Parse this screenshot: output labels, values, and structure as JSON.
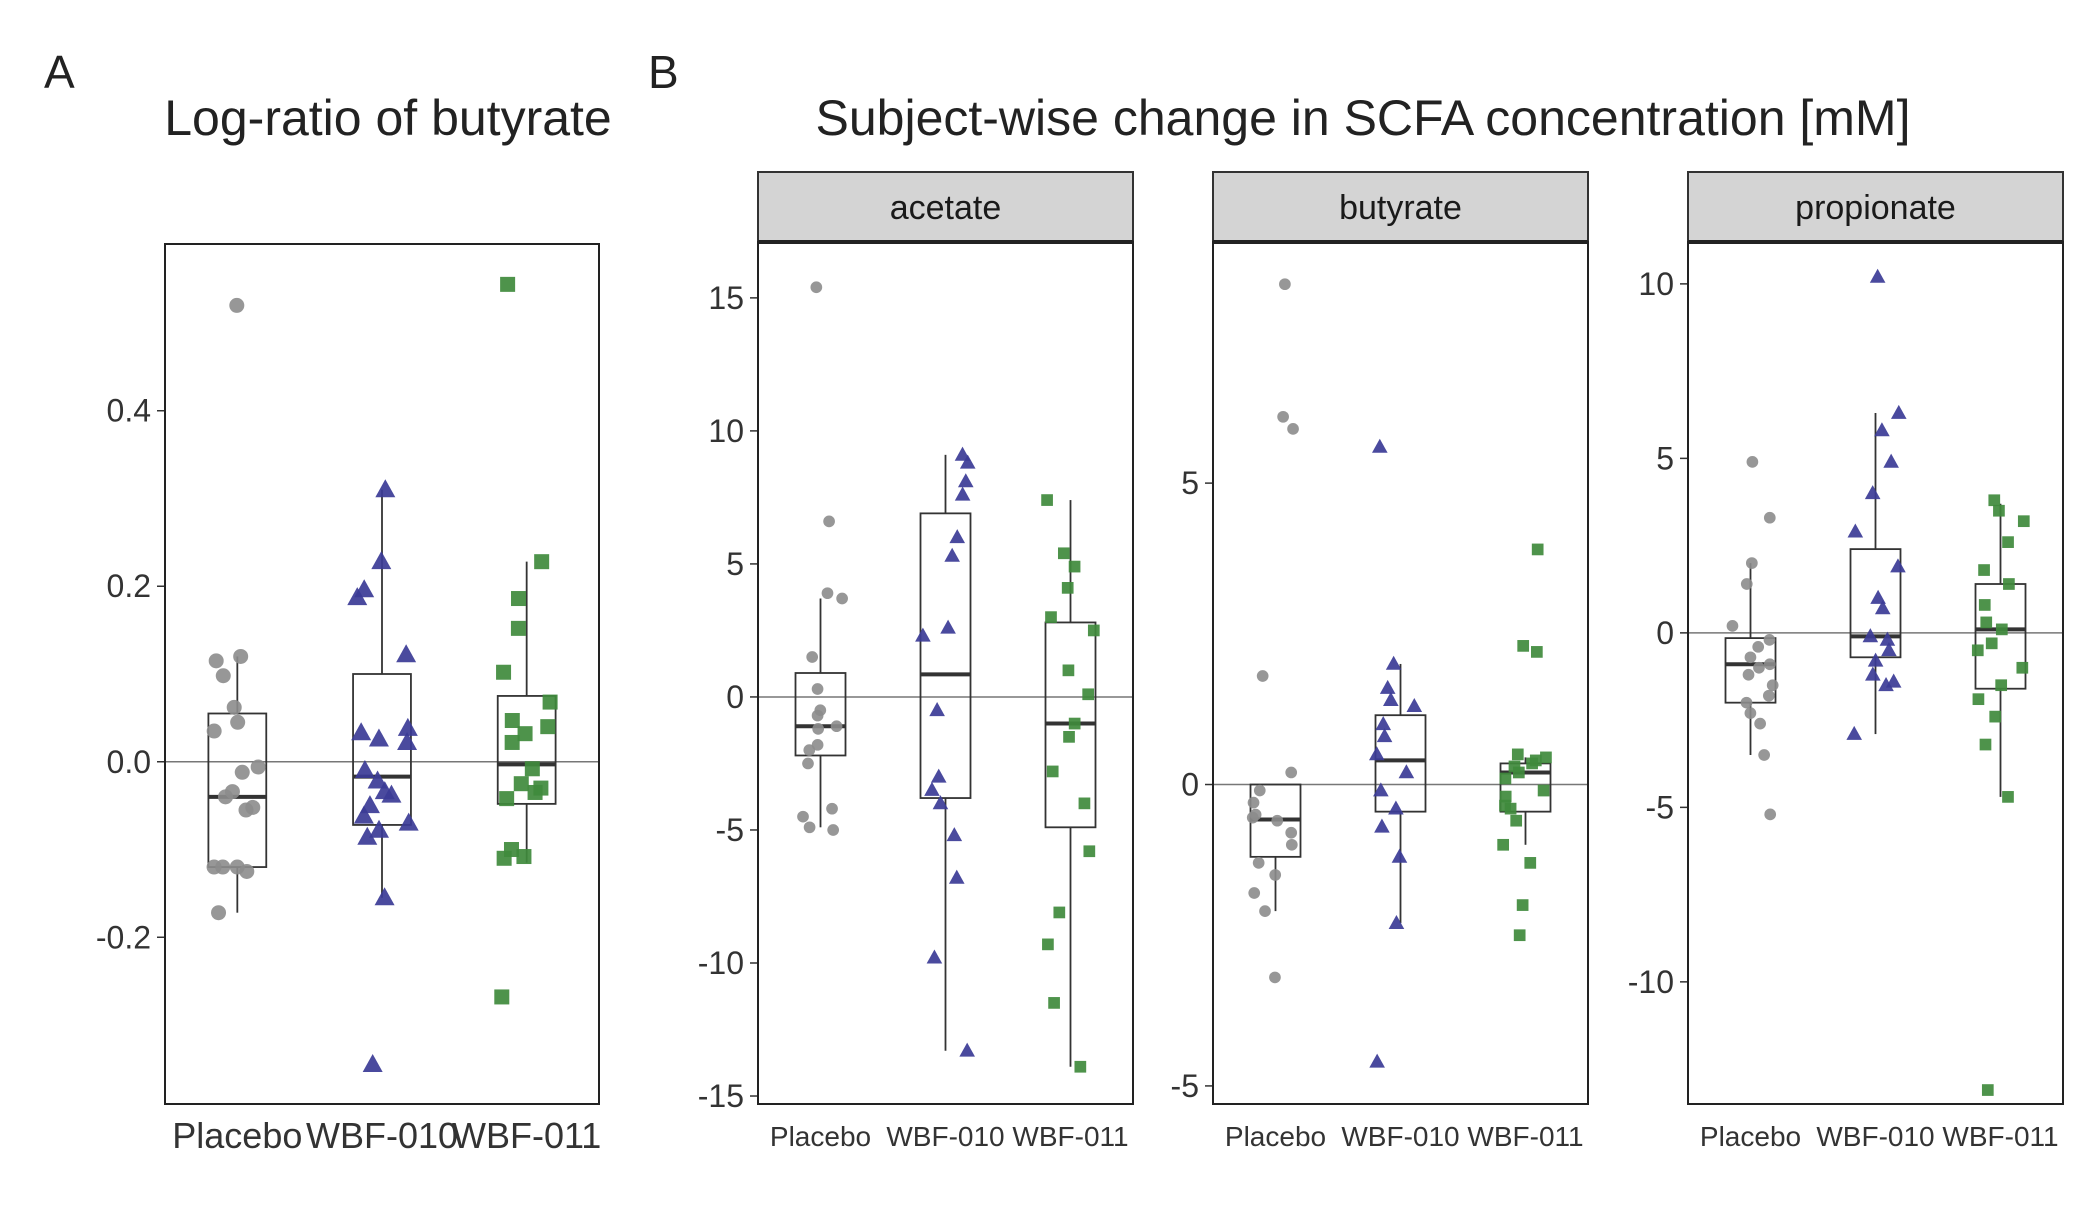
{
  "figure": {
    "panel_a_letter": "A",
    "panel_b_letter": "B",
    "panel_a_title": "Log-ratio of butyrate",
    "panel_b_title": "Subject-wise change in SCFA concentration [mM]"
  },
  "colors": {
    "Placebo": "#8c8c8c",
    "WBF-010": "#3b3b96",
    "WBF-011": "#3f8a3c",
    "strip_fill": "#d4d4d4",
    "box_stroke": "#333333"
  },
  "chart_data": [
    {
      "type": "scatter",
      "panel": "A",
      "title": "Log-ratio of butyrate",
      "xlabel": "",
      "ylabel": "",
      "categories": [
        "Placebo",
        "WBF-010",
        "WBF-011"
      ],
      "ylim": [
        -0.39,
        0.59
      ],
      "yticks": [
        -0.2,
        0.0,
        0.2,
        0.4
      ],
      "yticklabels": [
        "-0.2",
        "0.0",
        "0.2",
        "0.4"
      ],
      "reference_line": 0,
      "grid": false,
      "series": [
        {
          "category": "Placebo",
          "marker": "circle",
          "box": {
            "q1": -0.12,
            "median": -0.04,
            "q3": 0.055,
            "whisker_low": -0.172,
            "whisker_high": 0.12
          },
          "values": [
            0.52,
            0.12,
            0.115,
            0.098,
            0.062,
            0.045,
            0.035,
            -0.006,
            -0.012,
            -0.034,
            -0.04,
            -0.052,
            -0.055,
            -0.12,
            -0.12,
            -0.12,
            -0.125,
            -0.172
          ]
        },
        {
          "category": "WBF-010",
          "marker": "triangle",
          "box": {
            "q1": -0.072,
            "median": -0.017,
            "q3": 0.1,
            "whisker_low": -0.155,
            "whisker_high": 0.31
          },
          "values": [
            0.31,
            0.228,
            0.196,
            0.187,
            0.122,
            0.038,
            0.033,
            0.026,
            0.022,
            -0.01,
            -0.022,
            -0.034,
            -0.038,
            -0.05,
            -0.062,
            -0.07,
            -0.078,
            -0.086,
            -0.155,
            -0.345
          ]
        },
        {
          "category": "WBF-011",
          "marker": "square",
          "box": {
            "q1": -0.048,
            "median": -0.003,
            "q3": 0.075,
            "whisker_low": -0.115,
            "whisker_high": 0.228
          },
          "values": [
            0.544,
            0.228,
            0.186,
            0.152,
            0.102,
            0.068,
            0.047,
            0.04,
            0.032,
            0.022,
            -0.008,
            -0.025,
            -0.03,
            -0.035,
            -0.042,
            -0.1,
            -0.108,
            -0.11,
            -0.268
          ]
        }
      ]
    },
    {
      "type": "scatter",
      "panel": "B",
      "facet": "acetate",
      "title": "acetate",
      "xlabel": "",
      "ylabel": "",
      "categories": [
        "Placebo",
        "WBF-010",
        "WBF-011"
      ],
      "ylim": [
        -15.3,
        17.1
      ],
      "yticks": [
        -15,
        -10,
        -5,
        0,
        5,
        10,
        15
      ],
      "yticklabels": [
        "-15",
        "-10",
        "-5",
        "0",
        "5",
        "10",
        "15"
      ],
      "reference_line": 0,
      "grid": false,
      "series": [
        {
          "category": "Placebo",
          "marker": "circle",
          "box": {
            "q1": -2.2,
            "median": -1.1,
            "q3": 0.9,
            "whisker_low": -4.9,
            "whisker_high": 3.7
          },
          "values": [
            15.4,
            6.6,
            3.9,
            3.7,
            1.5,
            0.3,
            -0.5,
            -0.7,
            -1.1,
            -1.2,
            -1.8,
            -2.0,
            -2.5,
            -4.2,
            -4.5,
            -4.9,
            -5.0
          ]
        },
        {
          "category": "WBF-010",
          "marker": "triangle",
          "box": {
            "q1": -3.8,
            "median": 0.85,
            "q3": 6.9,
            "whisker_low": -13.3,
            "whisker_high": 9.1
          },
          "values": [
            9.1,
            8.8,
            8.1,
            7.6,
            6.0,
            5.3,
            2.6,
            2.3,
            -0.5,
            -3.0,
            -3.5,
            -4.0,
            -5.2,
            -6.8,
            -9.8,
            -13.3
          ]
        },
        {
          "category": "WBF-011",
          "marker": "square",
          "box": {
            "q1": -4.9,
            "median": -1.0,
            "q3": 2.8,
            "whisker_low": -13.9,
            "whisker_high": 7.4
          },
          "values": [
            7.4,
            5.4,
            4.9,
            4.1,
            3.0,
            2.5,
            1.0,
            0.1,
            -1.0,
            -1.5,
            -2.8,
            -4.0,
            -5.8,
            -8.1,
            -9.3,
            -11.5,
            -13.9
          ]
        }
      ]
    },
    {
      "type": "scatter",
      "panel": "B",
      "facet": "butyrate",
      "title": "butyrate",
      "xlabel": "",
      "ylabel": "",
      "categories": [
        "Placebo",
        "WBF-010",
        "WBF-011"
      ],
      "ylim": [
        -5.3,
        9.0
      ],
      "yticks": [
        -5,
        0,
        5
      ],
      "yticklabels": [
        "-5",
        "0",
        "5"
      ],
      "reference_line": 0,
      "grid": false,
      "series": [
        {
          "category": "Placebo",
          "marker": "circle",
          "box": {
            "q1": -1.2,
            "median": -0.58,
            "q3": 0.0,
            "whisker_low": -2.1,
            "whisker_high": 0.0
          },
          "values": [
            8.3,
            6.1,
            5.9,
            1.8,
            0.2,
            -0.1,
            -0.3,
            -0.5,
            -0.55,
            -0.6,
            -0.8,
            -1.0,
            -1.3,
            -1.5,
            -1.8,
            -2.1,
            -3.2
          ]
        },
        {
          "category": "WBF-010",
          "marker": "triangle",
          "box": {
            "q1": -0.45,
            "median": 0.4,
            "q3": 1.15,
            "whisker_low": -2.3,
            "whisker_high": 2.0
          },
          "values": [
            5.6,
            2.0,
            1.6,
            1.4,
            1.3,
            1.0,
            0.8,
            0.5,
            0.2,
            -0.1,
            -0.4,
            -0.7,
            -1.2,
            -2.3,
            -4.6
          ]
        },
        {
          "category": "WBF-011",
          "marker": "square",
          "box": {
            "q1": -0.45,
            "median": 0.2,
            "q3": 0.35,
            "whisker_low": -1.0,
            "whisker_high": 0.45
          },
          "values": [
            3.9,
            2.3,
            2.2,
            0.5,
            0.45,
            0.4,
            0.35,
            0.3,
            0.2,
            0.1,
            -0.1,
            -0.2,
            -0.35,
            -0.4,
            -0.6,
            -1.0,
            -1.3,
            -2.0,
            -2.5
          ]
        }
      ]
    },
    {
      "type": "scatter",
      "panel": "B",
      "facet": "propionate",
      "title": "propionate",
      "xlabel": "",
      "ylabel": "",
      "categories": [
        "Placebo",
        "WBF-010",
        "WBF-011"
      ],
      "ylim": [
        -13.5,
        11.2
      ],
      "yticks": [
        -10,
        -5,
        0,
        5,
        10
      ],
      "yticklabels": [
        "-10",
        "-5",
        "0",
        "5",
        "10"
      ],
      "reference_line": 0,
      "grid": false,
      "series": [
        {
          "category": "Placebo",
          "marker": "circle",
          "box": {
            "q1": -2.0,
            "median": -0.9,
            "q3": -0.15,
            "whisker_low": -3.5,
            "whisker_high": 2.0
          },
          "values": [
            4.9,
            3.3,
            2.0,
            1.4,
            0.2,
            -0.2,
            -0.4,
            -0.7,
            -0.9,
            -1.0,
            -1.2,
            -1.5,
            -1.8,
            -2.0,
            -2.3,
            -2.6,
            -3.5,
            -5.2
          ]
        },
        {
          "category": "WBF-010",
          "marker": "triangle",
          "box": {
            "q1": -0.7,
            "median": -0.1,
            "q3": 2.4,
            "whisker_low": -2.9,
            "whisker_high": 6.3
          },
          "values": [
            10.2,
            6.3,
            5.8,
            4.9,
            4.0,
            2.9,
            1.9,
            1.0,
            0.7,
            -0.1,
            -0.2,
            -0.5,
            -0.8,
            -1.2,
            -1.4,
            -1.5,
            -2.9
          ]
        },
        {
          "category": "WBF-011",
          "marker": "square",
          "box": {
            "q1": -1.6,
            "median": 0.1,
            "q3": 1.4,
            "whisker_low": -4.7,
            "whisker_high": 3.7
          },
          "values": [
            3.8,
            3.5,
            3.2,
            2.6,
            1.8,
            1.4,
            0.8,
            0.3,
            0.1,
            -0.3,
            -0.5,
            -1.0,
            -1.5,
            -1.9,
            -2.4,
            -3.2,
            -4.7,
            -13.1
          ]
        }
      ]
    }
  ]
}
